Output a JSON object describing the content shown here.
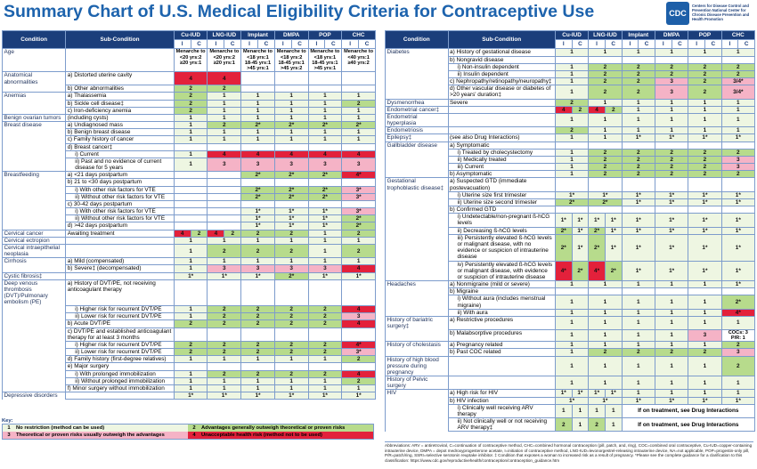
{
  "header": {
    "title": "Summary Chart of U.S. Medical Eligibility Criteria for Contraceptive Use",
    "logo": "CDC",
    "agency": "Centers for Disease Control and Prevention National Center for Chronic Disease Prevention and Health Promotion"
  },
  "columns": {
    "condition": "Condition",
    "sub": "Sub-Condition",
    "methods": [
      "Cu-IUD",
      "LNG-IUD",
      "Implant",
      "DMPA",
      "POP",
      "CHC"
    ],
    "split": [
      "I",
      "C"
    ]
  },
  "table_left": {
    "rows": [
      {
        "condition": "Age",
        "cells": [
          [
            "Menarche to <20 yrs:2",
            "≥20 yrs:1"
          ],
          [
            "Menarche to <20 yrs:2",
            "≥20 yrs:1"
          ],
          [
            "Menarche to <18 yrs:1",
            "18-45 yrs:1",
            ">45 yrs:1"
          ],
          [
            "Menarche to <18 yrs:2",
            "18-45 yrs:1",
            ">45 yrs:2"
          ],
          [
            "Menarche to <18 yrs:1",
            "18-45 yrs:1",
            ">45 yrs:1"
          ],
          [
            "Menarche to <40 yrs:1",
            "≥40 yrs:2"
          ]
        ]
      },
      {
        "condition": "Anatomical abnormalities",
        "sub": "a) Distorted uterine cavity",
        "cells": [
          4,
          4,
          null,
          null,
          null,
          null
        ]
      },
      {
        "sub": "b) Other abnormalities",
        "cells": [
          2,
          2,
          null,
          null,
          null,
          null
        ]
      },
      {
        "condition": "Anemias",
        "sub": "a) Thalassemia",
        "cells": [
          2,
          1,
          1,
          1,
          1,
          1
        ]
      },
      {
        "sub": "b) Sickle cell disease‡",
        "cells": [
          2,
          1,
          1,
          1,
          1,
          2
        ]
      },
      {
        "sub": "c) Iron-deficiency anemia",
        "cells": [
          2,
          1,
          1,
          1,
          1,
          1
        ]
      },
      {
        "condition": "Benign ovarian tumors",
        "sub": "(including cysts)",
        "cells": [
          1,
          1,
          1,
          1,
          1,
          1
        ]
      },
      {
        "condition": "Breast disease",
        "sub": "a) Undiagnosed mass",
        "cells": [
          1,
          2,
          "2*",
          "2*",
          "2*",
          "2*"
        ]
      },
      {
        "sub": "b) Benign breast disease",
        "cells": [
          1,
          1,
          1,
          1,
          1,
          1
        ]
      },
      {
        "sub": "c) Family history of cancer",
        "cells": [
          1,
          1,
          1,
          1,
          1,
          1
        ]
      },
      {
        "sub": "d) Breast cancer‡",
        "cells": [
          null,
          null,
          null,
          null,
          null,
          null
        ]
      },
      {
        "sub": "i) Current",
        "cells": [
          1,
          4,
          4,
          4,
          4,
          4
        ]
      },
      {
        "sub": "ii) Past and no evidence of current disease for 5 years",
        "cells": [
          1,
          3,
          3,
          3,
          3,
          3
        ]
      },
      {
        "condition": "Breastfeeding",
        "sub": "a) <21 days postpartum",
        "cells": [
          null,
          null,
          "2*",
          "2*",
          "2*",
          "4*"
        ]
      },
      {
        "sub": "b) 21 to <30 days postpartum",
        "cells": [
          null,
          null,
          null,
          null,
          null,
          null
        ]
      },
      {
        "sub": "i) With other risk factors for VTE",
        "cells": [
          null,
          null,
          "2*",
          "2*",
          "2*",
          "3*"
        ]
      },
      {
        "sub": "ii) Without other risk factors for VTE",
        "cells": [
          null,
          null,
          "2*",
          "2*",
          "2*",
          "3*"
        ]
      },
      {
        "sub": "c) 30-42 days postpartum",
        "cells": [
          null,
          null,
          null,
          null,
          null,
          null
        ]
      },
      {
        "sub": "i) With other risk factors for VTE",
        "cells": [
          null,
          null,
          "1*",
          "1*",
          "1*",
          "3*"
        ]
      },
      {
        "sub": "ii) Without other risk factors for VTE",
        "cells": [
          null,
          null,
          "1*",
          "1*",
          "1*",
          "2*"
        ]
      },
      {
        "sub": "d) >42 days postpartum",
        "cells": [
          null,
          null,
          "1*",
          "1*",
          "1*",
          "2*"
        ]
      },
      {
        "condition": "Cervical cancer",
        "sub": "Awaiting treatment",
        "cells": [
          {
            "I": 4,
            "C": 2
          },
          {
            "I": 4,
            "C": 2
          },
          2,
          2,
          1,
          2
        ]
      },
      {
        "condition": "Cervical ectropion",
        "cells": [
          1,
          1,
          1,
          1,
          1,
          1
        ]
      },
      {
        "condition": "Cervical intraepithelial neoplasia",
        "cells": [
          1,
          2,
          2,
          2,
          1,
          2
        ]
      },
      {
        "condition": "Cirrhosis",
        "sub": "a) Mild (compensated)",
        "cells": [
          1,
          1,
          1,
          1,
          1,
          1
        ]
      },
      {
        "sub": "b) Severe‡ (decompensated)",
        "cells": [
          1,
          3,
          3,
          3,
          3,
          4
        ]
      },
      {
        "condition": "Cystic fibrosis‡",
        "cells": [
          "1*",
          "1*",
          "1*",
          "2*",
          "1*",
          "1*"
        ]
      },
      {
        "condition": "Deep venous thrombosis (DVT)/Pulmonary embolism (PE)",
        "sub": "a) History of DVT/PE, not receiving anticoagulant therapy",
        "cells": [
          null,
          null,
          null,
          null,
          null,
          null
        ]
      },
      {
        "sub": "i) Higher risk for recurrent DVT/PE",
        "cells": [
          1,
          2,
          2,
          2,
          2,
          4
        ]
      },
      {
        "sub": "ii) Lower risk for recurrent DVT/PE",
        "cells": [
          1,
          2,
          2,
          2,
          2,
          3
        ]
      },
      {
        "sub": "b) Acute DVT/PE",
        "cells": [
          2,
          2,
          2,
          2,
          2,
          4
        ]
      },
      {
        "sub": "c) DVT/PE and established anticoagulant therapy for at least 3 months",
        "cells": [
          null,
          null,
          null,
          null,
          null,
          null
        ]
      },
      {
        "sub": "i) Higher risk for recurrent DVT/PE",
        "cells": [
          2,
          2,
          2,
          2,
          2,
          "4*"
        ]
      },
      {
        "sub": "ii) Lower risk for recurrent DVT/PE",
        "cells": [
          2,
          2,
          2,
          2,
          2,
          "3*"
        ]
      },
      {
        "sub": "d) Family history (first-degree relatives)",
        "cells": [
          1,
          1,
          1,
          1,
          1,
          2
        ]
      },
      {
        "sub": "e) Major surgery",
        "cells": [
          null,
          null,
          null,
          null,
          null,
          null
        ]
      },
      {
        "sub": "i) With prolonged immobilization",
        "cells": [
          1,
          2,
          2,
          2,
          2,
          4
        ]
      },
      {
        "sub": "ii) Without prolonged immobilization",
        "cells": [
          1,
          1,
          1,
          1,
          1,
          2
        ]
      },
      {
        "sub": "f) Minor surgery without immobilization",
        "cells": [
          1,
          1,
          1,
          1,
          1,
          1
        ]
      },
      {
        "condition": "Depressive disorders",
        "cells": [
          "1*",
          "1*",
          "1*",
          "1*",
          "1*",
          "1*"
        ]
      }
    ]
  },
  "table_right": {
    "rows": [
      {
        "condition": "Diabetes",
        "sub": "a) History of gestational disease",
        "cells": [
          1,
          1,
          1,
          1,
          1,
          1
        ]
      },
      {
        "sub": "b) Nongravid disease",
        "cells": [
          null,
          null,
          null,
          null,
          null,
          null
        ]
      },
      {
        "sub": "i) Non-insulin dependent",
        "cells": [
          1,
          2,
          2,
          2,
          2,
          2
        ]
      },
      {
        "sub": "ii) Insulin dependent",
        "cells": [
          1,
          2,
          2,
          2,
          2,
          2
        ]
      },
      {
        "sub": "c) Nephropathy/retinopathy/neuropathy‡",
        "cells": [
          1,
          2,
          2,
          3,
          2,
          "3/4*"
        ]
      },
      {
        "sub": "d) Other vascular disease or diabetes of >20 years' duration‡",
        "cells": [
          1,
          2,
          2,
          3,
          2,
          "3/4*"
        ]
      },
      {
        "condition": "Dysmenorrhea",
        "sub": "Severe",
        "cells": [
          2,
          1,
          1,
          1,
          1,
          1
        ]
      },
      {
        "condition": "Endometrial cancer‡",
        "cells": [
          {
            "I": 4,
            "C": 2
          },
          {
            "I": 4,
            "C": 2
          },
          1,
          1,
          1,
          1
        ]
      },
      {
        "condition": "Endometrial hyperplasia",
        "cells": [
          1,
          1,
          1,
          1,
          1,
          1
        ]
      },
      {
        "condition": "Endometriosis",
        "cells": [
          2,
          1,
          1,
          1,
          1,
          1
        ]
      },
      {
        "condition": "Epilepsy‡",
        "sub": "(see also Drug Interactions)",
        "cells": [
          1,
          1,
          "1*",
          "1*",
          "1*",
          "1*"
        ]
      },
      {
        "condition": "Gallbladder disease",
        "sub": "a) Symptomatic",
        "cells": [
          null,
          null,
          null,
          null,
          null,
          null
        ]
      },
      {
        "sub": "i) Treated by cholecystectomy",
        "cells": [
          1,
          2,
          2,
          2,
          2,
          2
        ]
      },
      {
        "sub": "ii) Medically treated",
        "cells": [
          1,
          2,
          2,
          2,
          2,
          3
        ]
      },
      {
        "sub": "iii) Current",
        "cells": [
          1,
          2,
          2,
          2,
          2,
          3
        ]
      },
      {
        "sub": "b) Asymptomatic",
        "cells": [
          1,
          2,
          2,
          2,
          2,
          2
        ]
      },
      {
        "condition": "Gestational trophoblastic disease‡",
        "sub": "a) Suspected GTD (immediate postevacuation)",
        "cells": [
          null,
          null,
          null,
          null,
          null,
          null
        ]
      },
      {
        "sub": "i) Uterine size first trimester",
        "cells": [
          "1*",
          "1*",
          "1*",
          "1*",
          "1*",
          "1*"
        ]
      },
      {
        "sub": "ii) Uterine size second trimester",
        "cells": [
          "2*",
          "2*",
          "1*",
          "1*",
          "1*",
          "1*"
        ]
      },
      {
        "sub": "b) Confirmed GTD",
        "cells": [
          null,
          null,
          null,
          null,
          null,
          null
        ]
      },
      {
        "sub": "i) Undetectable/non-pregnant ß-hCG levels",
        "cells": [
          {
            "I": "1*",
            "C": "1*"
          },
          {
            "I": "1*",
            "C": "1*"
          },
          "1*",
          "1*",
          "1*",
          "1*"
        ]
      },
      {
        "sub": "ii) Decreasing ß-hCG levels",
        "cells": [
          {
            "I": "2*",
            "C": "1*"
          },
          {
            "I": "2*",
            "C": "1*"
          },
          "1*",
          "1*",
          "1*",
          "1*"
        ]
      },
      {
        "sub": "iii) Persistently elevated ß-hCG levels or malignant disease, with no evidence or suspicion of intrauterine disease",
        "cells": [
          {
            "I": "2*",
            "C": "1*"
          },
          {
            "I": "2*",
            "C": "1*"
          },
          "1*",
          "1*",
          "1*",
          "1*"
        ]
      },
      {
        "sub": "iv) Persistently elevated ß-hCG levels or malignant disease, with evidence or suspicion of intrauterine disease",
        "cells": [
          {
            "I": "4*",
            "C": "2*"
          },
          {
            "I": "4*",
            "C": "2*"
          },
          "1*",
          "1*",
          "1*",
          "1*"
        ]
      },
      {
        "condition": "Headaches",
        "sub": "a) Nonmigraine (mild or severe)",
        "cells": [
          1,
          1,
          1,
          1,
          1,
          "1*"
        ]
      },
      {
        "sub": "b) Migraine",
        "cells": [
          null,
          null,
          null,
          null,
          null,
          null
        ]
      },
      {
        "sub": "i) Without aura (includes menstrual migraine)",
        "cells": [
          1,
          1,
          1,
          1,
          1,
          "2*"
        ]
      },
      {
        "sub": "ii) With aura",
        "cells": [
          1,
          1,
          1,
          1,
          1,
          "4*"
        ]
      },
      {
        "condition": "History of bariatric surgery‡",
        "sub": "a) Restrictive procedures",
        "cells": [
          1,
          1,
          1,
          1,
          1,
          1
        ]
      },
      {
        "sub": "b) Malabsorptive procedures",
        "cells": [
          1,
          1,
          1,
          1,
          3,
          [
            "COCs: 3",
            "P/R: 1"
          ]
        ]
      },
      {
        "condition": "History of cholestasis",
        "sub": "a) Pregnancy related",
        "cells": [
          1,
          1,
          1,
          1,
          1,
          2
        ]
      },
      {
        "sub": "b) Past COC related",
        "cells": [
          1,
          2,
          2,
          2,
          2,
          3
        ]
      },
      {
        "condition": "History of high blood pressure during pregnancy",
        "cells": [
          1,
          1,
          1,
          1,
          1,
          2
        ]
      },
      {
        "condition": "History of Pelvic surgery",
        "cells": [
          1,
          1,
          1,
          1,
          1,
          1
        ]
      },
      {
        "condition": "HIV",
        "sub": "a) High risk for HIV",
        "cells": [
          {
            "I": "1*",
            "C": "1*"
          },
          {
            "I": "1*",
            "C": "1*"
          },
          1,
          1,
          1,
          1
        ]
      },
      {
        "sub": "b) HIV infection",
        "cells": [
          "1*",
          "1*",
          "1*",
          "1*",
          "1*",
          "1*"
        ]
      },
      {
        "sub": "i) Clinically well receiving ARV therapy",
        "cells": [
          {
            "I": 1,
            "C": 1
          },
          {
            "I": 1,
            "C": 1
          }
        ],
        "note": "If on treatment, see Drug Interactions"
      },
      {
        "sub": "ii) Not clinically well or not receiving ARV therapy‡",
        "cells": [
          {
            "I": 2,
            "C": 1
          },
          {
            "I": 2,
            "C": 1
          }
        ],
        "note": "If on treatment, see Drug Interactions"
      }
    ]
  },
  "key": {
    "title": "Key:",
    "items": [
      {
        "num": 1,
        "text": "No restriction (method can be used)"
      },
      {
        "num": 2,
        "text": "Advantages generally outweigh theoretical or proven risks"
      },
      {
        "num": 3,
        "text": "Theoretical or proven risks usually outweigh the advantages"
      },
      {
        "num": 4,
        "text": "Unacceptable health risk (method not to be used)"
      }
    ]
  },
  "abbreviations": "Abbreviations: ARV = antiretroviral, C=continuation of contraceptive method, CHC=combined hormonal contraception (pill, patch, and, ring), COC=combined oral contraceptive, Cu-IUD=copper-containing intrauterine device, DMPA = depot medroxyprogesterone acetate, I=initiation of contraceptive method, LNG-IUD=levonorgestrel-releasing intrauterine device, NA=not applicable, POP=progestin-only pill, P/R=patch/ring, SSRI=selective serotonin reuptake inhibitor. ‡ Condition that exposes a woman to increased risk as a result of pregnancy. *Please see the complete guidance for a clarification to this classification: https://www.cdc.gov/reproductivehealth/contraception/contraception_guidance.htm"
}
